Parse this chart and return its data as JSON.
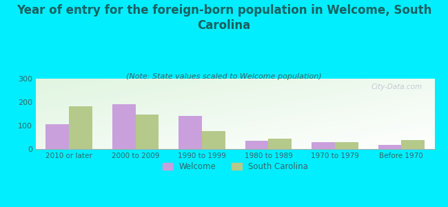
{
  "title": "Year of entry for the foreign-born population in Welcome, South\nCarolina",
  "subtitle": "(Note: State values scaled to Welcome population)",
  "categories": [
    "2010 or later",
    "2000 to 2009",
    "1990 to 1999",
    "1980 to 1989",
    "1970 to 1979",
    "Before 1970"
  ],
  "welcome_values": [
    107,
    192,
    140,
    35,
    28,
    17
  ],
  "sc_values": [
    181,
    148,
    76,
    45,
    29,
    38
  ],
  "welcome_color": "#c9a0dc",
  "sc_color": "#b5c98a",
  "background_color": "#00eeff",
  "ylim": [
    0,
    300
  ],
  "yticks": [
    0,
    100,
    200,
    300
  ],
  "bar_width": 0.35,
  "title_fontsize": 12,
  "subtitle_fontsize": 8,
  "title_color": "#1a6060",
  "tick_color": "#336666",
  "watermark": "City-Data.com"
}
